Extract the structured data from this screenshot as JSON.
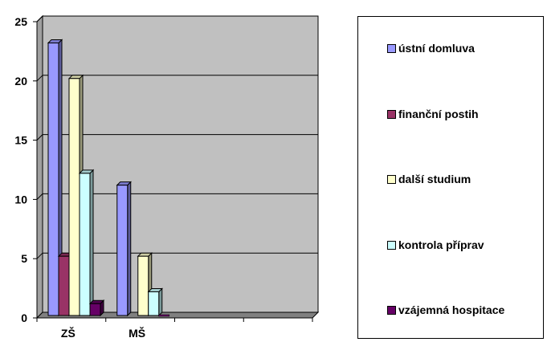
{
  "chart_data": {
    "type": "bar",
    "categories": [
      "ZŠ",
      "MŠ",
      "",
      ""
    ],
    "series": [
      {
        "name": "ústní domluva",
        "values": [
          23,
          11,
          0,
          0
        ],
        "color": "#9999ff"
      },
      {
        "name": "finanční postih",
        "values": [
          5,
          0,
          0,
          0
        ],
        "color": "#993366"
      },
      {
        "name": "další studium",
        "values": [
          20,
          5,
          0,
          0
        ],
        "color": "#ffffcc"
      },
      {
        "name": "kontrola příprav",
        "values": [
          12,
          2,
          0,
          0
        ],
        "color": "#ccffff"
      },
      {
        "name": "vzájemná hospitace",
        "values": [
          1,
          0,
          0,
          0
        ],
        "color": "#660066"
      }
    ],
    "yticks": [
      "0",
      "5",
      "10",
      "15",
      "20",
      "25"
    ],
    "ylim": [
      0,
      25
    ],
    "grid": true,
    "legend": "right",
    "plot_background": "#c0c0c0"
  }
}
